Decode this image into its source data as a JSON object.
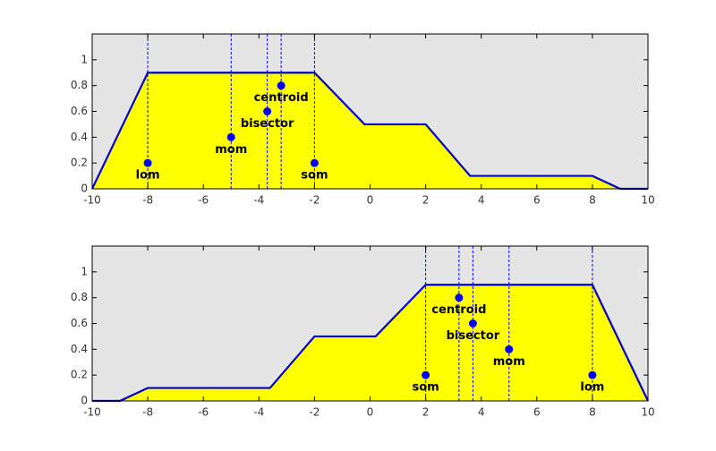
{
  "chart_data": [
    {
      "type": "area",
      "color": "#ffff00",
      "edge_color": "#0000cc",
      "point_color": "#0000ff",
      "x": [
        -10,
        -8,
        -2,
        -0.2,
        2,
        3.6,
        8,
        9,
        10
      ],
      "values": [
        0,
        0.9,
        0.9,
        0.5,
        0.5,
        0.1,
        0.1,
        0,
        0
      ],
      "points": {
        "labels": [
          "lom",
          "mom",
          "bisector",
          "centroid",
          "som"
        ],
        "x": [
          -8,
          -5,
          -3.7,
          -3.2,
          -2
        ],
        "y": [
          0.2,
          0.4,
          0.6,
          0.8,
          0.2
        ]
      },
      "xlim": [
        -10,
        10
      ],
      "ylim": [
        0,
        1.2
      ],
      "xticks": [
        -10,
        -8,
        -6,
        -4,
        -2,
        0,
        2,
        4,
        6,
        8,
        10
      ],
      "yticks": [
        0,
        0.2,
        0.4,
        0.6,
        0.8,
        1
      ]
    },
    {
      "type": "area",
      "color": "#ffff00",
      "edge_color": "#0000cc",
      "point_color": "#0000ff",
      "x": [
        -10,
        -9,
        -8,
        -3.6,
        -2,
        0.2,
        2,
        8,
        10
      ],
      "values": [
        0,
        0,
        0.1,
        0.1,
        0.5,
        0.5,
        0.9,
        0.9,
        0
      ],
      "points": {
        "labels": [
          "som",
          "centroid",
          "bisector",
          "mom",
          "lom"
        ],
        "x": [
          2,
          3.2,
          3.7,
          5,
          8
        ],
        "y": [
          0.2,
          0.8,
          0.6,
          0.4,
          0.2
        ]
      },
      "xlim": [
        -10,
        10
      ],
      "ylim": [
        0,
        1.2
      ],
      "xticks": [
        -10,
        -8,
        -6,
        -4,
        -2,
        0,
        2,
        4,
        6,
        8,
        10
      ],
      "yticks": [
        0,
        0.2,
        0.4,
        0.6,
        0.8,
        1
      ]
    }
  ]
}
